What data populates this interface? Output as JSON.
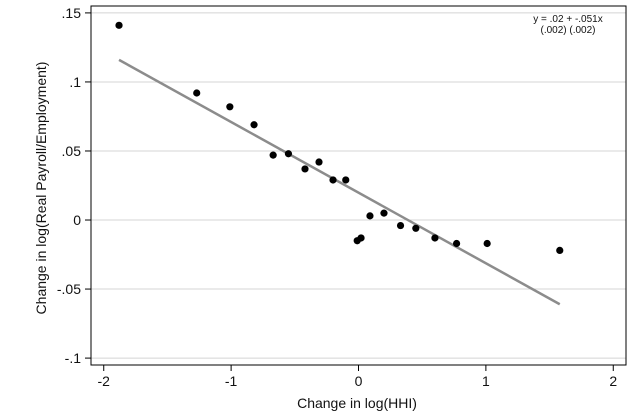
{
  "chart_data": {
    "type": "scatter",
    "title": "",
    "xlabel": "Change in log(HHI)",
    "ylabel": "Change in log(Real Payroll/Employment)",
    "xlim": [
      -2.1,
      2.1
    ],
    "ylim": [
      -0.105,
      0.155
    ],
    "xticks": [
      -2,
      -1,
      0,
      1,
      2
    ],
    "xtick_labels": [
      "-2",
      "-1",
      "0",
      "1",
      "2"
    ],
    "yticks": [
      -0.1,
      -0.05,
      0,
      0.05,
      0.1,
      0.15
    ],
    "ytick_labels": [
      "-.1",
      "-.05",
      "0",
      ".05",
      ".1",
      ".15"
    ],
    "grid": "horizontal",
    "points": [
      {
        "x": -1.88,
        "y": 0.141
      },
      {
        "x": -1.27,
        "y": 0.092
      },
      {
        "x": -1.01,
        "y": 0.082
      },
      {
        "x": -0.82,
        "y": 0.069
      },
      {
        "x": -0.67,
        "y": 0.047
      },
      {
        "x": -0.55,
        "y": 0.048
      },
      {
        "x": -0.42,
        "y": 0.037
      },
      {
        "x": -0.31,
        "y": 0.042
      },
      {
        "x": -0.2,
        "y": 0.029
      },
      {
        "x": -0.1,
        "y": 0.029
      },
      {
        "x": -0.01,
        "y": -0.015
      },
      {
        "x": 0.02,
        "y": -0.013
      },
      {
        "x": 0.09,
        "y": 0.003
      },
      {
        "x": 0.2,
        "y": 0.005
      },
      {
        "x": 0.33,
        "y": -0.004
      },
      {
        "x": 0.45,
        "y": -0.006
      },
      {
        "x": 0.6,
        "y": -0.013
      },
      {
        "x": 0.77,
        "y": -0.017
      },
      {
        "x": 1.01,
        "y": -0.017
      },
      {
        "x": 1.58,
        "y": -0.022
      }
    ],
    "fit_line": {
      "x": [
        -1.88,
        1.58
      ],
      "y": [
        0.116,
        -0.061
      ]
    },
    "annotation": {
      "line1": "y = .02 + -.051x",
      "line2": "(.002)   (.002)"
    },
    "colors": {
      "points": "#000000",
      "fit_line": "#8c8c8c",
      "grid": "#d4d4d4",
      "axis": "#000000"
    }
  }
}
